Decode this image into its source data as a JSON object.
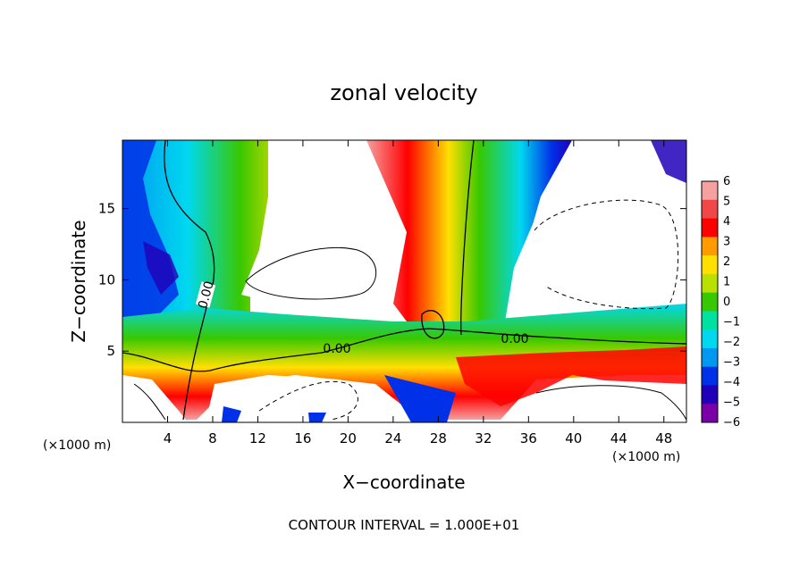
{
  "chart_data": {
    "type": "heatmap",
    "title": "zonal velocity",
    "xlabel": "X−coordinate",
    "ylabel": "Z−coordinate",
    "x_unit_label": "(×1000 m)",
    "x_unit_label_right": "(×1000 m)",
    "footer": "CONTOUR INTERVAL = 1.000E+01",
    "contour_label": "0.00",
    "xlim": [
      0,
      50
    ],
    "ylim": [
      0,
      19.8
    ],
    "x_ticks": [
      "4",
      "8",
      "12",
      "16",
      "20",
      "24",
      "28",
      "32",
      "36",
      "40",
      "44",
      "48"
    ],
    "x_tick_values": [
      4,
      8,
      12,
      16,
      20,
      24,
      28,
      32,
      36,
      40,
      44,
      48
    ],
    "y_ticks": [
      "5",
      "10",
      "15"
    ],
    "y_tick_values": [
      5,
      10,
      15
    ],
    "colorbar": {
      "range": [
        -6,
        6
      ],
      "labels": [
        "6",
        "5",
        "4",
        "3",
        "2",
        "1",
        "0",
        "−1",
        "−2",
        "−3",
        "−4",
        "−5",
        "−6"
      ],
      "label_values": [
        6,
        5,
        4,
        3,
        2,
        1,
        0,
        -1,
        -2,
        -3,
        -4,
        -5,
        -6
      ]
    },
    "colors": {
      "c6": "#f6a0a0",
      "c5": "#f04848",
      "c4": "#ff0000",
      "c3": "#ff9a00",
      "c2": "#ffe000",
      "c1": "#b8e000",
      "c0": "#38c800",
      "cm1": "#00e0a0",
      "cm2": "#00d8f0",
      "cm3": "#0098f0",
      "cm4": "#0030e8",
      "cm5": "#2000b8",
      "cm6": "#7a00a8"
    }
  }
}
